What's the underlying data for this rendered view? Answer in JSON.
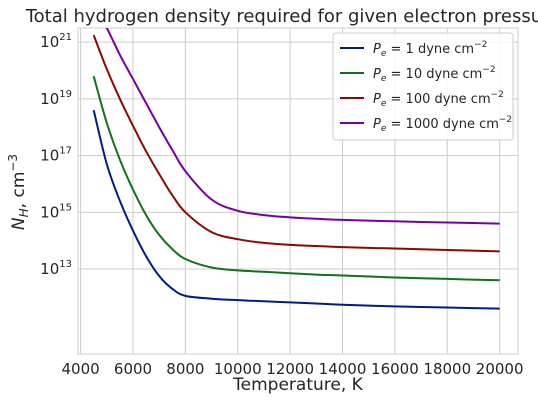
{
  "chart_data": {
    "type": "line",
    "title": "Total hydrogen density required for given electron pressure",
    "xlabel": "Temperature, K",
    "ylabel": "N_H, cm^-3",
    "ylabel_parts": {
      "main": "N",
      "sub": "H",
      "unit": ", cm",
      "exp": "−3"
    },
    "xlim": [
      3900,
      20700
    ],
    "ylim": [
      10,
      21.5
    ],
    "yscale": "log",
    "grid": true,
    "legend_position": "top-right",
    "x_ticks": [
      4000,
      6000,
      8000,
      10000,
      12000,
      14000,
      16000,
      18000,
      20000
    ],
    "y_ticks": [
      {
        "base": "10",
        "exp": "13",
        "value": 13
      },
      {
        "base": "10",
        "exp": "15",
        "value": 15
      },
      {
        "base": "10",
        "exp": "17",
        "value": 17
      },
      {
        "base": "10",
        "exp": "19",
        "value": 19
      },
      {
        "base": "10",
        "exp": "21",
        "value": 21
      }
    ],
    "x": [
      4500,
      5000,
      5500,
      6000,
      6500,
      7000,
      7500,
      8000,
      9000,
      10000,
      11000,
      12000,
      13000,
      14000,
      16000,
      18000,
      20000
    ],
    "series": [
      {
        "name": "P_e = 1 dyne cm^-2",
        "legend": {
          "var": "P",
          "sub": "e",
          "rest": " = 1 dyne cm",
          "exp": "−2"
        },
        "color": "#001c7f",
        "values": [
          18.6,
          16.7,
          15.4,
          14.35,
          13.45,
          12.75,
          12.3,
          12.05,
          11.95,
          11.9,
          11.86,
          11.82,
          11.78,
          11.74,
          11.68,
          11.64,
          11.6
        ]
      },
      {
        "name": "P_e = 10 dyne cm^-2",
        "legend": {
          "var": "P",
          "sub": "e",
          "rest": " = 10 dyne cm",
          "exp": "−2"
        },
        "color": "#12711c",
        "values": [
          19.8,
          18.15,
          16.85,
          15.8,
          14.9,
          14.2,
          13.7,
          13.35,
          13.05,
          12.95,
          12.9,
          12.85,
          12.8,
          12.77,
          12.7,
          12.65,
          12.6
        ]
      },
      {
        "name": "P_e = 100 dyne cm^-2",
        "legend": {
          "var": "P",
          "sub": "e",
          "rest": " = 100 dyne cm",
          "exp": "−2"
        },
        "color": "#8c0800",
        "values": [
          21.25,
          20.05,
          19.0,
          18.05,
          17.15,
          16.35,
          15.6,
          15.0,
          14.3,
          14.05,
          13.92,
          13.85,
          13.81,
          13.77,
          13.72,
          13.67,
          13.62
        ]
      },
      {
        "name": "P_e = 1000 dyne cm^-2",
        "legend": {
          "var": "P",
          "sub": "e",
          "rest": " = 1000 dyne cm",
          "exp": "−2"
        },
        "color": "#7600a1",
        "values": [
          22.3,
          21.5,
          20.55,
          19.7,
          18.85,
          18.0,
          17.2,
          16.45,
          15.45,
          15.05,
          14.9,
          14.82,
          14.77,
          14.73,
          14.68,
          14.64,
          14.6
        ]
      }
    ]
  }
}
